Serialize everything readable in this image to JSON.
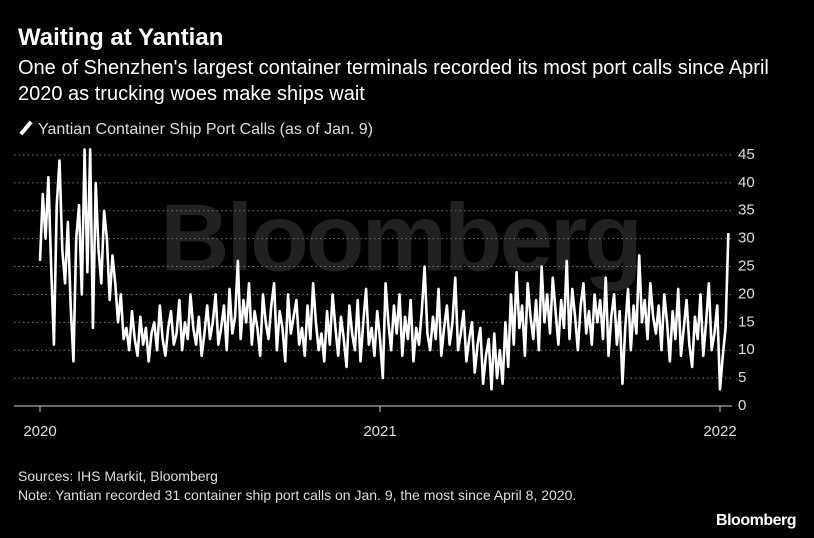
{
  "chart_data": {
    "type": "line",
    "title": "Waiting at Yantian",
    "subtitle": "One of Shenzhen's largest container terminals recorded its most port calls since April 2020 as trucking woes make ships wait",
    "source": "Sources: IHS Markit, Bloomberg",
    "note": "Note: Yantian recorded 31 container ship port calls on Jan. 9, the most since April 8, 2020.",
    "brand": "Bloomberg",
    "watermark": "Bloomberg",
    "categories": [
      "2020",
      null,
      null,
      null,
      null,
      null,
      null,
      null,
      null,
      null,
      null,
      null,
      null,
      null,
      null,
      null,
      null,
      null,
      null,
      null,
      null,
      null,
      null,
      null,
      null,
      null,
      null,
      null,
      null,
      null,
      null,
      null,
      null,
      null,
      null,
      null,
      null,
      null,
      null,
      null,
      null,
      null,
      null,
      null,
      null,
      null,
      null,
      null,
      null,
      null,
      null,
      null,
      null,
      null,
      null,
      null,
      null,
      null,
      null,
      null,
      null,
      null,
      null,
      null,
      null,
      null,
      null,
      null,
      null,
      null,
      null,
      null,
      null,
      null,
      null,
      null,
      null,
      null,
      null,
      null,
      null,
      null,
      null,
      null,
      null,
      null,
      null,
      null,
      null,
      null,
      null,
      null,
      null,
      null,
      null,
      null,
      null,
      null,
      null,
      null,
      null,
      null,
      null,
      null,
      null,
      null,
      null,
      null,
      null,
      null,
      null,
      null,
      null,
      null,
      null,
      null,
      null,
      null,
      null,
      null,
      null,
      null,
      "2021",
      null,
      null,
      null,
      null,
      null,
      null,
      null,
      null,
      null,
      null,
      null,
      null,
      null,
      null,
      null,
      null,
      null,
      null,
      null,
      null,
      null,
      null,
      null,
      null,
      null,
      null,
      null,
      null,
      null,
      null,
      null,
      null,
      null,
      null,
      null,
      null,
      null,
      null,
      null,
      null,
      null,
      null,
      null,
      null,
      null,
      null,
      null,
      null,
      null,
      null,
      null,
      null,
      null,
      null,
      null,
      null,
      null,
      null,
      null,
      null,
      null,
      null,
      null,
      null,
      null,
      null,
      null,
      null,
      null,
      null,
      null,
      null,
      null,
      null,
      null,
      null,
      null,
      null,
      null,
      null,
      null,
      null,
      null,
      null,
      null,
      null,
      null,
      null,
      null,
      null,
      null,
      null,
      null,
      null,
      null,
      null,
      null,
      null,
      null,
      null,
      null,
      null,
      null,
      null,
      null,
      null,
      null,
      null,
      null,
      null,
      null,
      null,
      null,
      null,
      null,
      null,
      null,
      null,
      null,
      null,
      null,
      "2022",
      null,
      null,
      null
    ],
    "series": [
      {
        "name": "Yantian Container Ship Port Calls (as of Jan. 9)",
        "color": "#ffffff",
        "values": [
          26,
          38,
          30,
          41,
          25,
          11,
          36,
          44,
          28,
          22,
          33,
          18,
          8,
          30,
          36,
          20,
          46,
          24,
          46,
          14,
          40,
          28,
          22,
          35,
          30,
          19,
          27,
          22,
          15,
          20,
          12,
          14,
          10,
          17,
          12,
          9,
          16,
          11,
          14,
          8,
          13,
          15,
          10,
          18,
          12,
          9,
          14,
          17,
          11,
          13,
          19,
          10,
          15,
          12,
          20,
          14,
          11,
          16,
          9,
          13,
          18,
          12,
          15,
          20,
          11,
          14,
          18,
          10,
          21,
          13,
          16,
          26,
          12,
          19,
          15,
          22,
          11,
          17,
          14,
          9,
          20,
          15,
          12,
          18,
          22,
          10,
          17,
          14,
          8,
          20,
          13,
          16,
          19,
          11,
          14,
          9,
          18,
          12,
          22,
          15,
          10,
          13,
          8,
          17,
          11,
          20,
          14,
          9,
          16,
          12,
          7,
          18,
          13,
          10,
          19,
          8,
          15,
          21,
          11,
          14,
          9,
          17,
          12,
          5,
          22,
          15,
          10,
          18,
          13,
          20,
          9,
          16,
          12,
          19,
          8,
          14,
          11,
          17,
          25,
          13,
          10,
          16,
          12,
          21,
          9,
          14,
          18,
          11,
          15,
          23,
          10,
          13,
          17,
          8,
          12,
          15,
          6,
          11,
          14,
          4,
          9,
          12,
          3,
          13,
          5,
          10,
          4,
          15,
          7,
          20,
          11,
          24,
          14,
          18,
          9,
          22,
          16,
          12,
          19,
          10,
          25,
          15,
          20,
          13,
          23,
          17,
          11,
          19,
          14,
          26,
          12,
          21,
          16,
          10,
          18,
          22,
          13,
          17,
          11,
          20,
          15,
          19,
          12,
          23,
          9,
          16,
          20,
          11,
          17,
          4,
          14,
          21,
          10,
          18,
          13,
          27,
          15,
          19,
          12,
          22,
          16,
          13,
          18,
          10,
          20,
          15,
          8,
          17,
          12,
          21,
          9,
          14,
          19,
          11,
          7,
          16,
          12,
          20,
          9,
          15,
          22,
          10,
          13,
          18,
          3,
          9,
          14,
          31
        ]
      }
    ],
    "ylim": [
      0,
      45
    ],
    "yticks": [
      0,
      5,
      10,
      15,
      20,
      25,
      30,
      35,
      40,
      45
    ],
    "grid": true
  }
}
